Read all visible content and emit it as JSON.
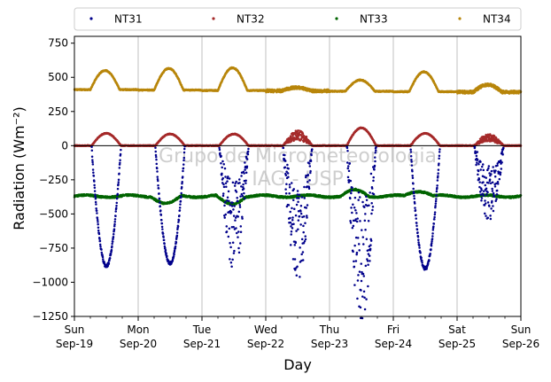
{
  "chart_data": {
    "type": "scatter",
    "xlabel": "Day",
    "ylabel": "Radiation (Wm⁻²)",
    "ylim": [
      -1250,
      800
    ],
    "xlim": [
      0,
      7
    ],
    "yticks": [
      "-1250",
      "-1000",
      "-750",
      "-500",
      "-250",
      "0",
      "250",
      "500",
      "750"
    ],
    "ytick_values": [
      -1250,
      -1000,
      -750,
      -500,
      -250,
      0,
      250,
      500,
      750
    ],
    "xtick_days": [
      {
        "day": "Sun",
        "date": "Sep-19"
      },
      {
        "day": "Mon",
        "date": "Sep-20"
      },
      {
        "day": "Tue",
        "date": "Sep-21"
      },
      {
        "day": "Wed",
        "date": "Sep-22"
      },
      {
        "day": "Thu",
        "date": "Sep-23"
      },
      {
        "day": "Fri",
        "date": "Sep-24"
      },
      {
        "day": "Sat",
        "date": "Sep-25"
      },
      {
        "day": "Sun",
        "date": "Sep-26"
      }
    ],
    "grid": "vertical",
    "legend_position": "top",
    "watermark": [
      "Grupo de Micrometeorologia",
      "IAG - USP"
    ],
    "series": [
      {
        "name": "NT31",
        "color": "#00008b",
        "daily_min": [
          -880,
          -860,
          -830,
          -900,
          -1200,
          -900,
          -520
        ]
      },
      {
        "name": "NT32",
        "color": "#a52a2a",
        "daily_max": [
          90,
          85,
          85,
          95,
          130,
          90,
          70
        ]
      },
      {
        "name": "NT33",
        "color": "#006400",
        "baseline_approx": -370,
        "min_approx": -440,
        "max_approx": -315
      },
      {
        "name": "NT34",
        "color": "#b8860b",
        "daily_max": [
          550,
          565,
          570,
          425,
          480,
          540,
          445
        ],
        "night_level_approx": 400
      }
    ]
  }
}
